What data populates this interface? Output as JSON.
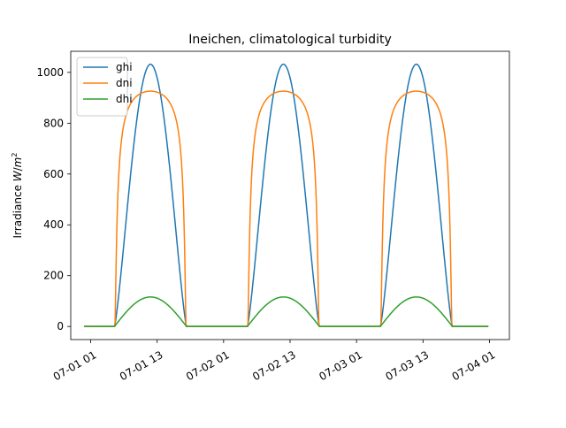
{
  "chart_data": {
    "type": "line",
    "title": "Ineichen, climatological turbidity",
    "xlabel": "",
    "ylabel_prefix": "Irradiance ",
    "ylabel_unit_W": "W",
    "ylabel_unit_m": "m",
    "ylabel_unit_exp": "2",
    "xlim_hours": [
      -3.6,
      75.6
    ],
    "ylim": [
      -51.6,
      1083.0
    ],
    "x_ticks": [
      {
        "label": "07-01 01",
        "hour": 0
      },
      {
        "label": "07-01 13",
        "hour": 12
      },
      {
        "label": "07-02 01",
        "hour": 24
      },
      {
        "label": "07-02 13",
        "hour": 36
      },
      {
        "label": "07-03 01",
        "hour": 48
      },
      {
        "label": "07-03 13",
        "hour": 60
      },
      {
        "label": "07-04 01",
        "hour": 72
      }
    ],
    "y_ticks": [
      0,
      200,
      400,
      600,
      800,
      1000
    ],
    "legend_position": "top-left",
    "day_model": {
      "sunrise_offset_hours": 5.3,
      "sunset_offset_hours": 18.3,
      "days": 3,
      "first_day_offset_hours": -1
    },
    "series": [
      {
        "name": "ghi",
        "color": "#1f77b4",
        "peak": 1032,
        "shape": "sine",
        "exponent": 1.25,
        "dni_knee": 0
      },
      {
        "name": "dni",
        "color": "#ff7f0e",
        "peak": 926,
        "shape": "plateau",
        "exponent": 0,
        "dni_knee": 12
      },
      {
        "name": "dhi",
        "color": "#2ca02c",
        "peak": 116,
        "shape": "sine",
        "exponent": 1.0,
        "dni_knee": 0
      }
    ]
  }
}
